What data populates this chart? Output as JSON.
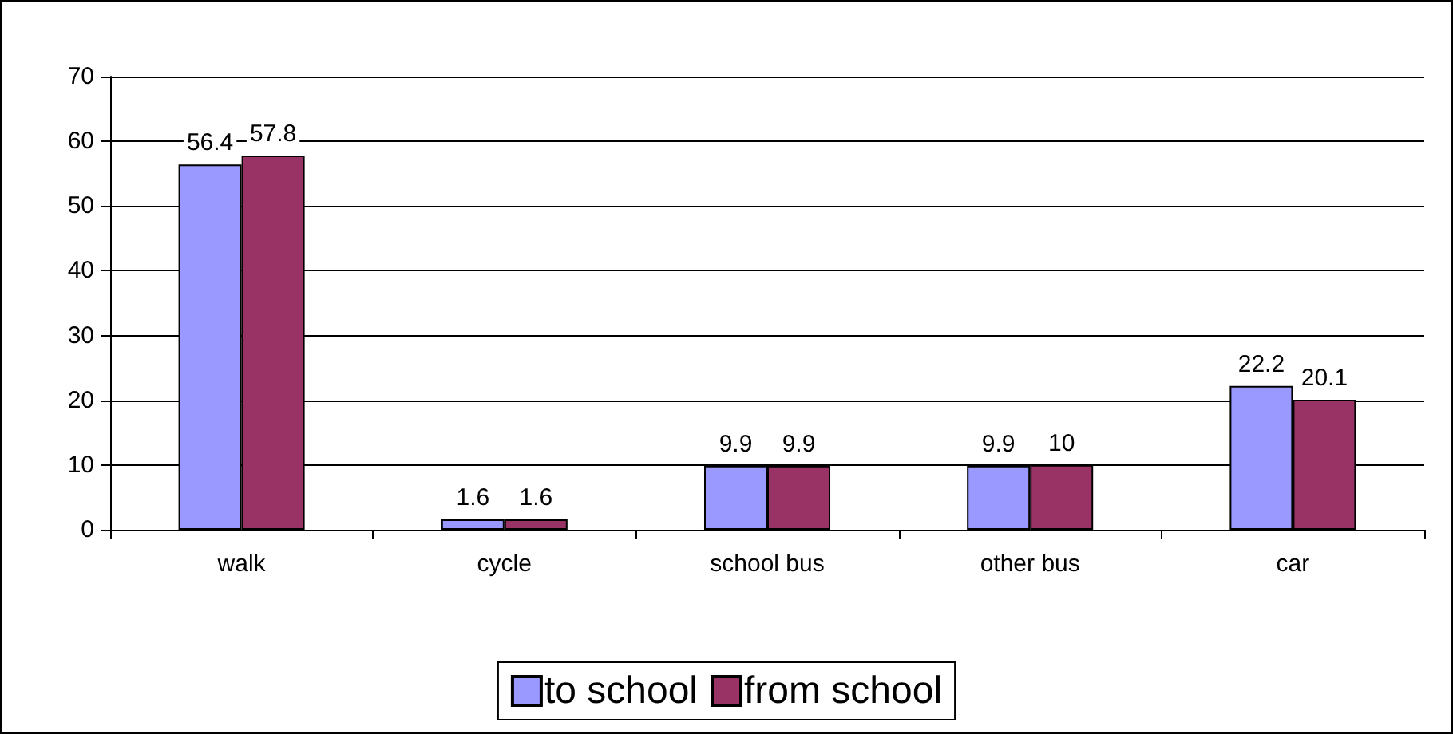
{
  "chart_data": {
    "type": "bar",
    "categories": [
      "walk",
      "cycle",
      "school bus",
      "other bus",
      "car"
    ],
    "series": [
      {
        "name": "to school",
        "color": "#9999ff",
        "values": [
          56.4,
          1.6,
          9.9,
          9.9,
          22.2
        ]
      },
      {
        "name": "from school",
        "color": "#993366",
        "values": [
          57.8,
          1.6,
          9.9,
          10,
          20.1
        ]
      }
    ],
    "ylim": [
      0,
      70
    ],
    "yticks": [
      0,
      10,
      20,
      30,
      40,
      50,
      60,
      70
    ],
    "grid": "y",
    "legend": "bottom",
    "data_labels": true
  }
}
